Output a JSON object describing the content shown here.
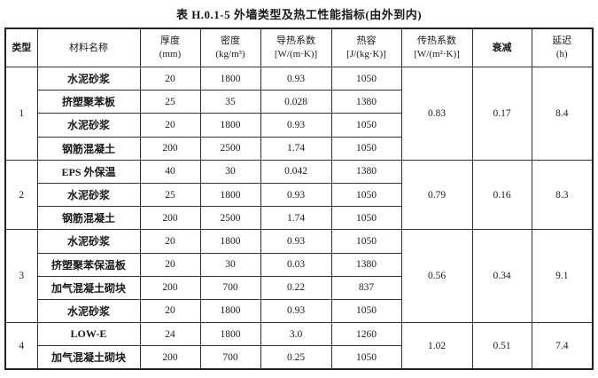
{
  "title": "表 H.0.1-5   外墙类型及热工性能指标(由外到内)",
  "headers": {
    "type": "类型",
    "material": "材料名称",
    "thickness": [
      "厚度",
      "(mm)"
    ],
    "density": [
      "密度",
      "(kg/m³)"
    ],
    "conductivity": [
      "导热系数",
      "[W/(m·K)]"
    ],
    "heat_capacity": [
      "热容",
      "[J/(kg·K)]"
    ],
    "transfer": [
      "传热系数",
      "[W/(m²·K)]"
    ],
    "attenuation": "衰减",
    "delay": [
      "延迟",
      "(h)"
    ]
  },
  "groups": [
    {
      "type": "1",
      "transfer": "0.83",
      "attenuation": "0.17",
      "delay": "8.4",
      "layers": [
        {
          "material": "水泥砂浆",
          "thickness": "20",
          "density": "1800",
          "conductivity": "0.93",
          "heat_capacity": "1050"
        },
        {
          "material": "挤塑聚苯板",
          "thickness": "25",
          "density": "35",
          "conductivity": "0.028",
          "heat_capacity": "1380"
        },
        {
          "material": "水泥砂浆",
          "thickness": "20",
          "density": "1800",
          "conductivity": "0.93",
          "heat_capacity": "1050"
        },
        {
          "material": "钢筋混凝土",
          "thickness": "200",
          "density": "2500",
          "conductivity": "1.74",
          "heat_capacity": "1050"
        }
      ]
    },
    {
      "type": "2",
      "transfer": "0.79",
      "attenuation": "0.16",
      "delay": "8.3",
      "layers": [
        {
          "material": "EPS 外保温",
          "thickness": "40",
          "density": "30",
          "conductivity": "0.042",
          "heat_capacity": "1380"
        },
        {
          "material": "水泥砂浆",
          "thickness": "25",
          "density": "1800",
          "conductivity": "0.93",
          "heat_capacity": "1050"
        },
        {
          "material": "钢筋混凝土",
          "thickness": "200",
          "density": "2500",
          "conductivity": "1.74",
          "heat_capacity": "1050"
        }
      ]
    },
    {
      "type": "3",
      "transfer": "0.56",
      "attenuation": "0.34",
      "delay": "9.1",
      "layers": [
        {
          "material": "水泥砂浆",
          "thickness": "20",
          "density": "1800",
          "conductivity": "0.93",
          "heat_capacity": "1050"
        },
        {
          "material": "挤塑聚苯保温板",
          "thickness": "20",
          "density": "30",
          "conductivity": "0.03",
          "heat_capacity": "1380"
        },
        {
          "material": "加气混凝土砌块",
          "thickness": "200",
          "density": "700",
          "conductivity": "0.22",
          "heat_capacity": "837"
        },
        {
          "material": "水泥砂浆",
          "thickness": "20",
          "density": "1800",
          "conductivity": "0.93",
          "heat_capacity": "1050"
        }
      ]
    },
    {
      "type": "4",
      "transfer": "1.02",
      "attenuation": "0.51",
      "delay": "7.4",
      "layers": [
        {
          "material": "LOW-E",
          "thickness": "24",
          "density": "1800",
          "conductivity": "3.0",
          "heat_capacity": "1260"
        },
        {
          "material": "加气混凝土砌块",
          "thickness": "200",
          "density": "700",
          "conductivity": "0.25",
          "heat_capacity": "1050"
        }
      ]
    }
  ]
}
